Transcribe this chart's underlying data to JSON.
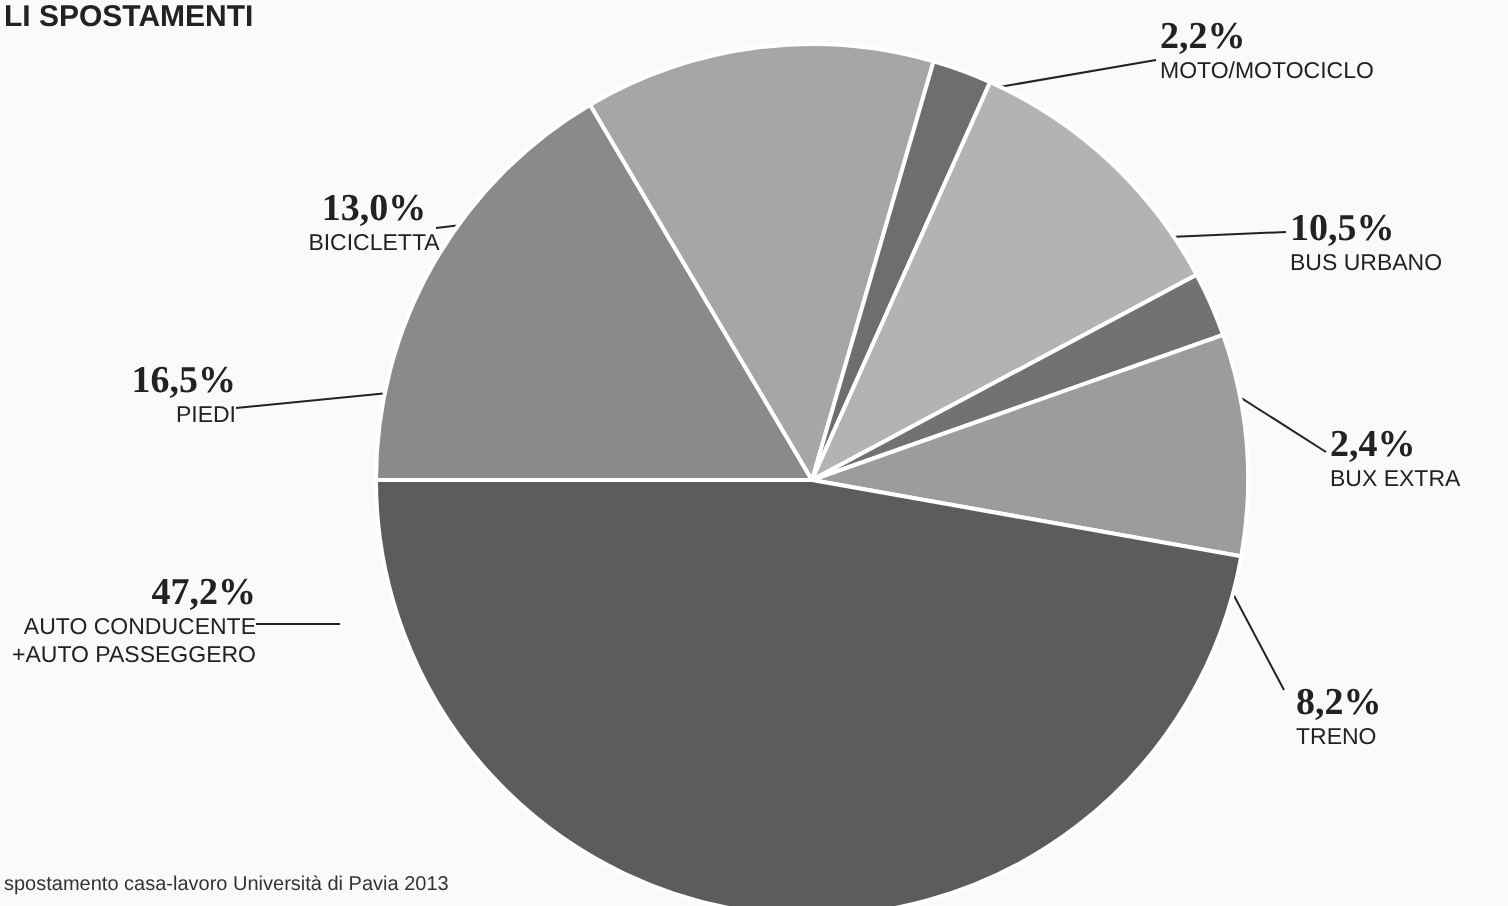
{
  "chart_data": {
    "type": "pie",
    "title": "LI SPOSTAMENTI",
    "annotations": [
      "spostamento casa-lavoro Università di Pavia 2013"
    ],
    "categories": [
      "PIEDI",
      "BICICLETTA",
      "MOTO/MOTOCICLO",
      "BUS URBANO",
      "BUX EXTRA",
      "TRENO",
      "AUTO CONDUCENTE +AUTO PASSEGGERO"
    ],
    "values": [
      16.5,
      13.0,
      2.2,
      10.5,
      2.4,
      8.2,
      47.2
    ],
    "value_labels": [
      "16,5%",
      "13,0%",
      "2,2%",
      "10,5%",
      "2,4%",
      "8,2%",
      "47,2%"
    ],
    "colors": [
      "#8a8a8a",
      "#a6a6a6",
      "#6e6e6e",
      "#b3b3b3",
      "#727272",
      "#9c9c9c",
      "#5c5c5c"
    ]
  }
}
